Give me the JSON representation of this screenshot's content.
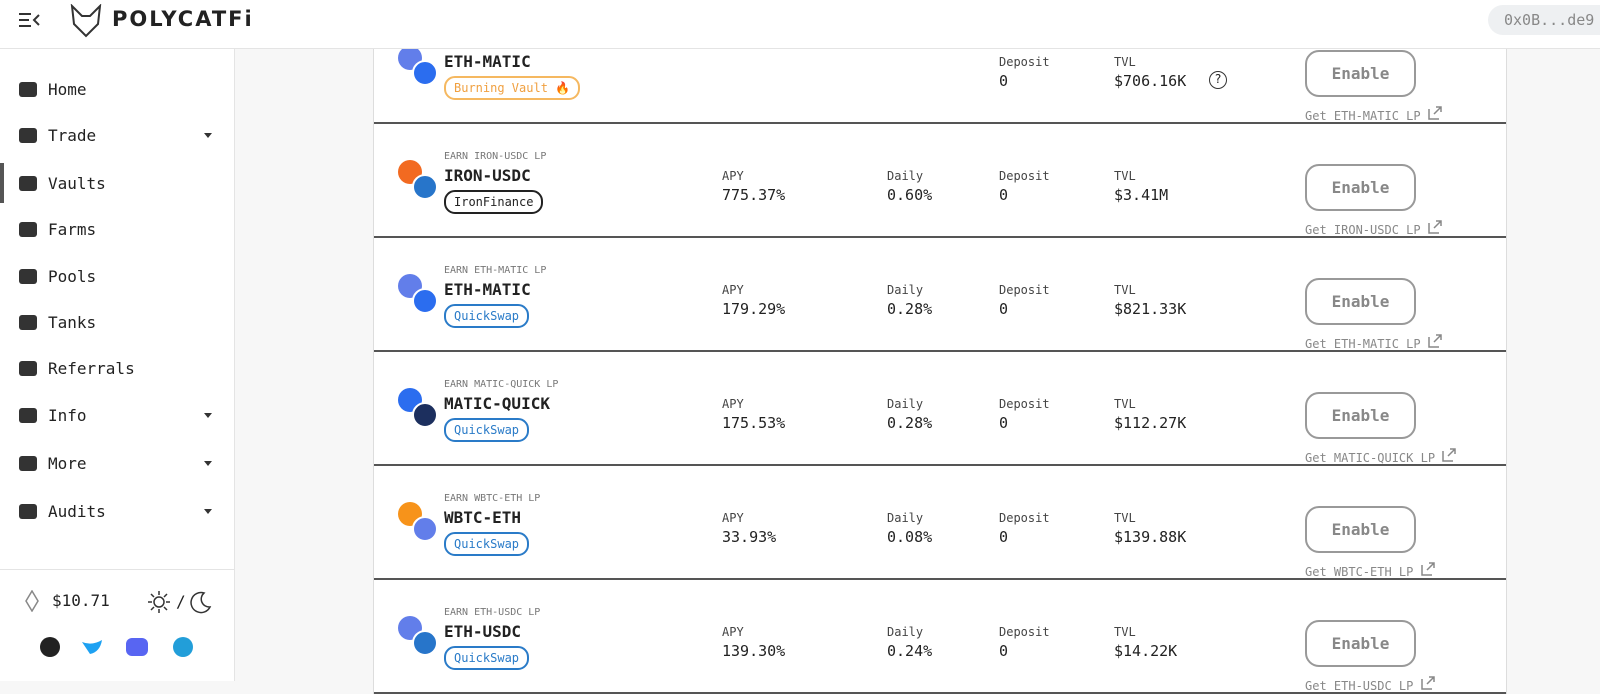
{
  "header": {
    "brand": "POLYCATFi",
    "wallet": "0x0B...de9"
  },
  "nav": [
    {
      "label": "Home"
    },
    {
      "label": "Trade",
      "caret": true
    },
    {
      "label": "Vaults",
      "active": true
    },
    {
      "label": "Farms"
    },
    {
      "label": "Pools"
    },
    {
      "label": "Tanks"
    },
    {
      "label": "Referrals"
    },
    {
      "label": "Info",
      "caret": true
    },
    {
      "label": "More",
      "caret": true
    },
    {
      "label": "Audits",
      "caret": true
    }
  ],
  "footer": {
    "price": "$10.71",
    "theme_sep": "/"
  },
  "labels": {
    "apy": "APY",
    "daily": "Daily",
    "deposit": "Deposit",
    "tvl": "TVL",
    "button": "Enable"
  },
  "rows": [
    {
      "name": "ETH-MATIC",
      "badge": "Burning Vault 🔥",
      "badge_style": "burn",
      "deposit": "0",
      "tvl": "$706.16K",
      "help": "?",
      "link": "Get ETH-MATIC LP",
      "icons": [
        "#627eea",
        "#2b6def"
      ]
    },
    {
      "earn": "EARN IRON-USDC LP",
      "name": "IRON-USDC",
      "badge": "IronFinance",
      "badge_style": "iron",
      "apy": "775.37%",
      "daily": "0.60%",
      "deposit": "0",
      "tvl": "$3.41M",
      "link": "Get IRON-USDC LP",
      "icons": [
        "#f26a21",
        "#2775ca"
      ]
    },
    {
      "earn": "EARN ETH-MATIC LP",
      "name": "ETH-MATIC",
      "badge": "QuickSwap",
      "badge_style": "quick",
      "apy": "179.29%",
      "daily": "0.28%",
      "deposit": "0",
      "tvl": "$821.33K",
      "link": "Get ETH-MATIC LP",
      "icons": [
        "#627eea",
        "#2b6def"
      ]
    },
    {
      "earn": "EARN MATIC-QUICK LP",
      "name": "MATIC-QUICK",
      "badge": "QuickSwap",
      "badge_style": "quick",
      "apy": "175.53%",
      "daily": "0.28%",
      "deposit": "0",
      "tvl": "$112.27K",
      "link": "Get MATIC-QUICK LP",
      "icons": [
        "#2b6def",
        "#1c2f5e"
      ]
    },
    {
      "earn": "EARN WBTC-ETH LP",
      "name": "WBTC-ETH",
      "badge": "QuickSwap",
      "badge_style": "quick",
      "apy": "33.93%",
      "daily": "0.08%",
      "deposit": "0",
      "tvl": "$139.88K",
      "link": "Get WBTC-ETH LP",
      "icons": [
        "#f7931a",
        "#627eea"
      ]
    },
    {
      "earn": "EARN ETH-USDC LP",
      "name": "ETH-USDC",
      "badge": "QuickSwap",
      "badge_style": "quick",
      "apy": "139.30%",
      "daily": "0.24%",
      "deposit": "0",
      "tvl": "$14.22K",
      "link": "Get ETH-USDC LP",
      "icons": [
        "#627eea",
        "#2775ca"
      ]
    }
  ]
}
